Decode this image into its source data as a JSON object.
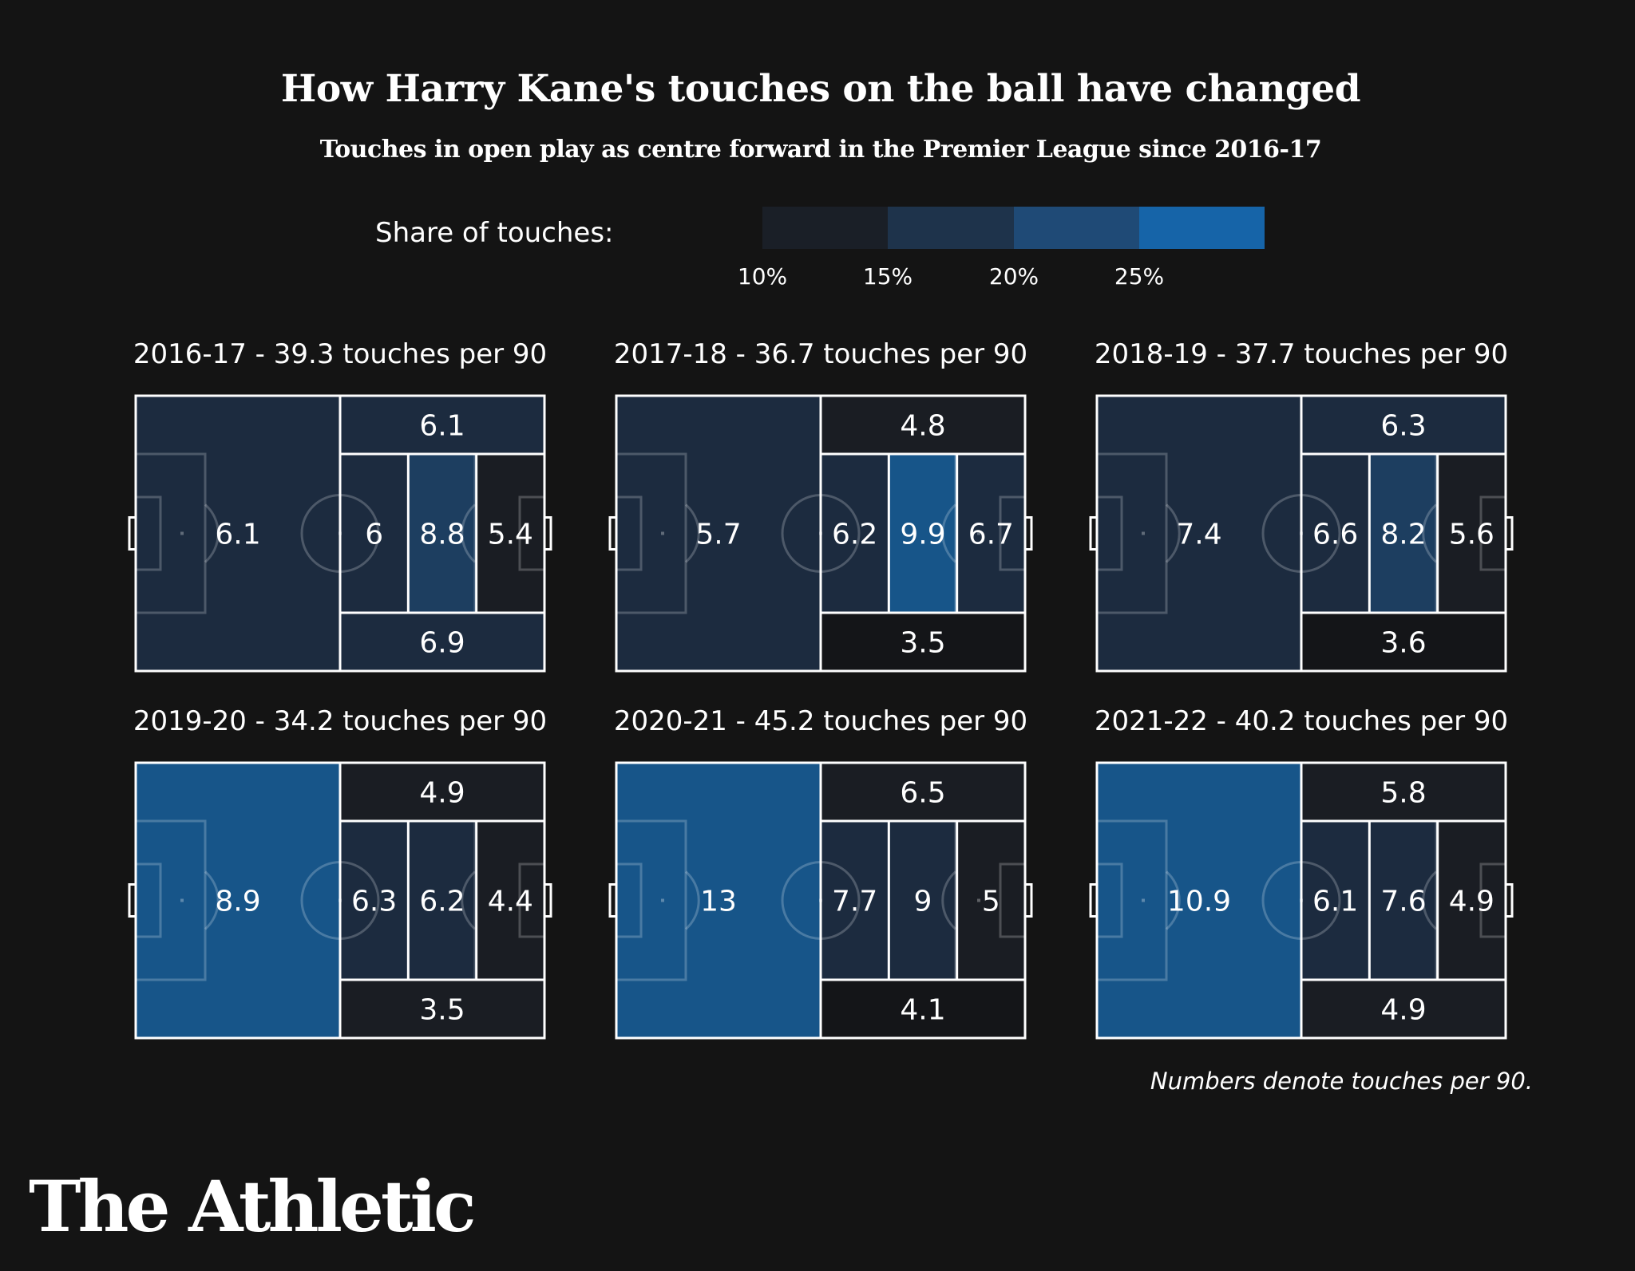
{
  "header": {
    "title": "How Harry Kane's touches on the ball have changed",
    "subtitle": "Touches in open play as centre forward in the Premier League since 2016-17"
  },
  "legend": {
    "label": "Share of touches:",
    "ticks": [
      "10%",
      "15%",
      "20%",
      "25%"
    ],
    "colors": [
      "#1a1f27",
      "#1e334b",
      "#1f4a76",
      "#1664a8"
    ]
  },
  "footnote": "Numbers denote touches per 90.",
  "logo": "The Athletic",
  "chart_data": {
    "type": "heatmap",
    "title": "How Harry Kane's touches on the ball have changed",
    "subtitle": "Touches in open play as centre forward in the Premier League since 2016-17",
    "color_scale": {
      "label": "Share of touches:",
      "breaks": [
        10,
        15,
        20,
        25
      ],
      "unit": "%",
      "colors": [
        "#141518",
        "#1a1d23",
        "#1c2b3f",
        "#1d3e60",
        "#175589"
      ]
    },
    "zones": [
      "own_half",
      "wide_top",
      "central_left",
      "central_middle",
      "central_right",
      "wide_bottom"
    ],
    "pitches": [
      {
        "title": "2016-17 - 39.3 touches per 90",
        "season": "2016-17",
        "total": 39.3,
        "values": {
          "own_half": "6.1",
          "wide_top": "6.1",
          "central_left": "6",
          "central_middle": "8.8",
          "central_right": "5.4",
          "wide_bottom": "6.9"
        }
      },
      {
        "title": "2017-18 - 36.7 touches per 90",
        "season": "2017-18",
        "total": 36.7,
        "values": {
          "own_half": "5.7",
          "wide_top": "4.8",
          "central_left": "6.2",
          "central_middle": "9.9",
          "central_right": "6.7",
          "wide_bottom": "3.5"
        }
      },
      {
        "title": "2018-19 - 37.7 touches per 90",
        "season": "2018-19",
        "total": 37.7,
        "values": {
          "own_half": "7.4",
          "wide_top": "6.3",
          "central_left": "6.6",
          "central_middle": "8.2",
          "central_right": "5.6",
          "wide_bottom": "3.6"
        }
      },
      {
        "title": "2019-20 - 34.2 touches per 90",
        "season": "2019-20",
        "total": 34.2,
        "values": {
          "own_half": "8.9",
          "wide_top": "4.9",
          "central_left": "6.3",
          "central_middle": "6.2",
          "central_right": "4.4",
          "wide_bottom": "3.5"
        }
      },
      {
        "title": "2020-21 - 45.2 touches per 90",
        "season": "2020-21",
        "total": 45.2,
        "values": {
          "own_half": "13",
          "wide_top": "6.5",
          "central_left": "7.7",
          "central_middle": "9",
          "central_right": "5",
          "wide_bottom": "4.1"
        }
      },
      {
        "title": "2021-22 - 40.2 touches per 90",
        "season": "2021-22",
        "total": 40.2,
        "values": {
          "own_half": "10.9",
          "wide_top": "5.8",
          "central_left": "6.1",
          "central_middle": "7.6",
          "central_right": "4.9",
          "wide_bottom": "4.9"
        }
      }
    ]
  }
}
